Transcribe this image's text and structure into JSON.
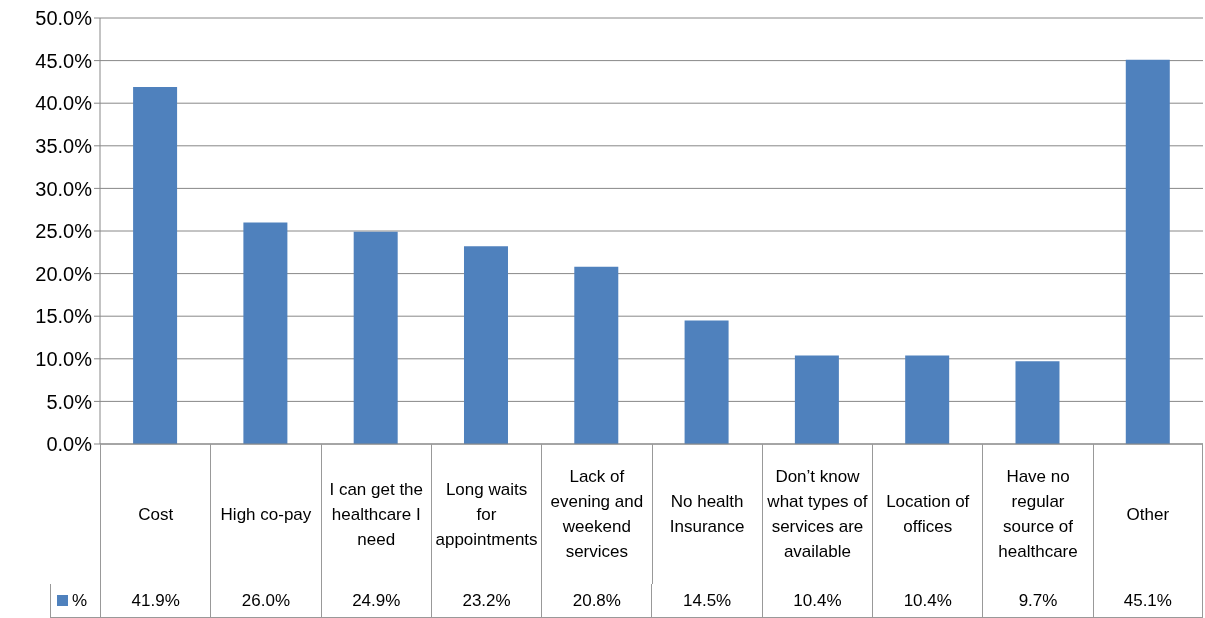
{
  "chart_data": {
    "type": "bar",
    "categories": [
      "Cost",
      "High co-pay",
      "I can get the healthcare I need",
      "Long waits for appointments",
      "Lack of evening and weekend services",
      "No health Insurance",
      "Don’t know what types of services are available",
      "Location of offices",
      "Have no regular source of healthcare",
      "Other"
    ],
    "series": [
      {
        "name": "%",
        "color": "#4f81bd",
        "values": [
          41.9,
          26.0,
          24.9,
          23.2,
          20.8,
          14.5,
          10.4,
          10.4,
          9.7,
          45.1
        ],
        "value_labels": [
          "41.9%",
          "26.0%",
          "24.9%",
          "23.2%",
          "20.8%",
          "14.5%",
          "10.4%",
          "10.4%",
          "9.7%",
          "45.1%"
        ]
      }
    ],
    "ylim": [
      0,
      50
    ],
    "yticks": [
      {
        "value": 0,
        "label": "0.0%"
      },
      {
        "value": 5,
        "label": "5.0%"
      },
      {
        "value": 10,
        "label": "10.0%"
      },
      {
        "value": 15,
        "label": "15.0%"
      },
      {
        "value": 20,
        "label": "20.0%"
      },
      {
        "value": 25,
        "label": "25.0%"
      },
      {
        "value": 30,
        "label": "30.0%"
      },
      {
        "value": 35,
        "label": "35.0%"
      },
      {
        "value": 40,
        "label": "40.0%"
      },
      {
        "value": 45,
        "label": "45.0%"
      },
      {
        "value": 50,
        "label": "50.0%"
      }
    ],
    "grid": "y",
    "legend": "bottom left"
  }
}
